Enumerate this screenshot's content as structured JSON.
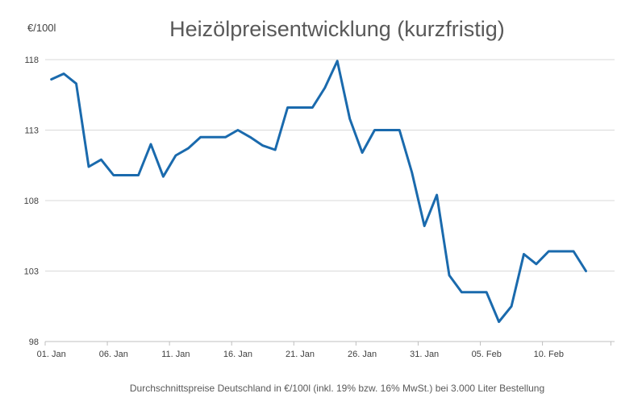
{
  "chart_data": {
    "type": "line",
    "title": "Heizölpreisentwicklung (kurzfristig)",
    "ylabel": "€/100l",
    "xlabel": "",
    "caption": "Durchschnittspreise Deutschland in €/100l (inkl. 19% bzw. 16%  MwSt.) bei 3.000 Liter Bestellung",
    "ylim": [
      98,
      118
    ],
    "yticks": [
      98,
      103,
      108,
      113,
      118
    ],
    "xtick_labels": [
      "01. Jan",
      "06. Jan",
      "11. Jan",
      "16. Jan",
      "21. Jan",
      "26. Jan",
      "31. Jan",
      "05. Feb",
      "10. Feb"
    ],
    "xtick_days": [
      1,
      6,
      11,
      16,
      21,
      26,
      31,
      36,
      41
    ],
    "x_days": [
      1,
      2,
      3,
      4,
      5,
      6,
      7,
      8,
      9,
      10,
      11,
      12,
      13,
      14,
      15,
      16,
      17,
      18,
      19,
      20,
      21,
      22,
      23,
      24,
      25,
      26,
      27,
      28,
      29,
      30,
      31,
      32,
      33,
      34,
      35,
      36,
      37,
      38,
      39,
      40,
      41,
      42,
      43,
      44,
      45
    ],
    "values": [
      116.6,
      117.0,
      116.3,
      110.4,
      110.9,
      109.8,
      109.8,
      109.8,
      112.0,
      109.7,
      111.2,
      111.7,
      112.5,
      112.5,
      112.5,
      113.0,
      112.5,
      111.9,
      111.6,
      114.6,
      114.6,
      114.6,
      116.0,
      117.9,
      113.8,
      111.4,
      113.0,
      113.0,
      113.0,
      110.0,
      106.2,
      108.4,
      102.7,
      101.5,
      101.5,
      101.5,
      99.4,
      100.5,
      104.2,
      103.5,
      104.4,
      104.4,
      104.4,
      103.0,
      null
    ],
    "grid": true,
    "legend": "none",
    "colors": {
      "series": "#1a6aad"
    }
  }
}
